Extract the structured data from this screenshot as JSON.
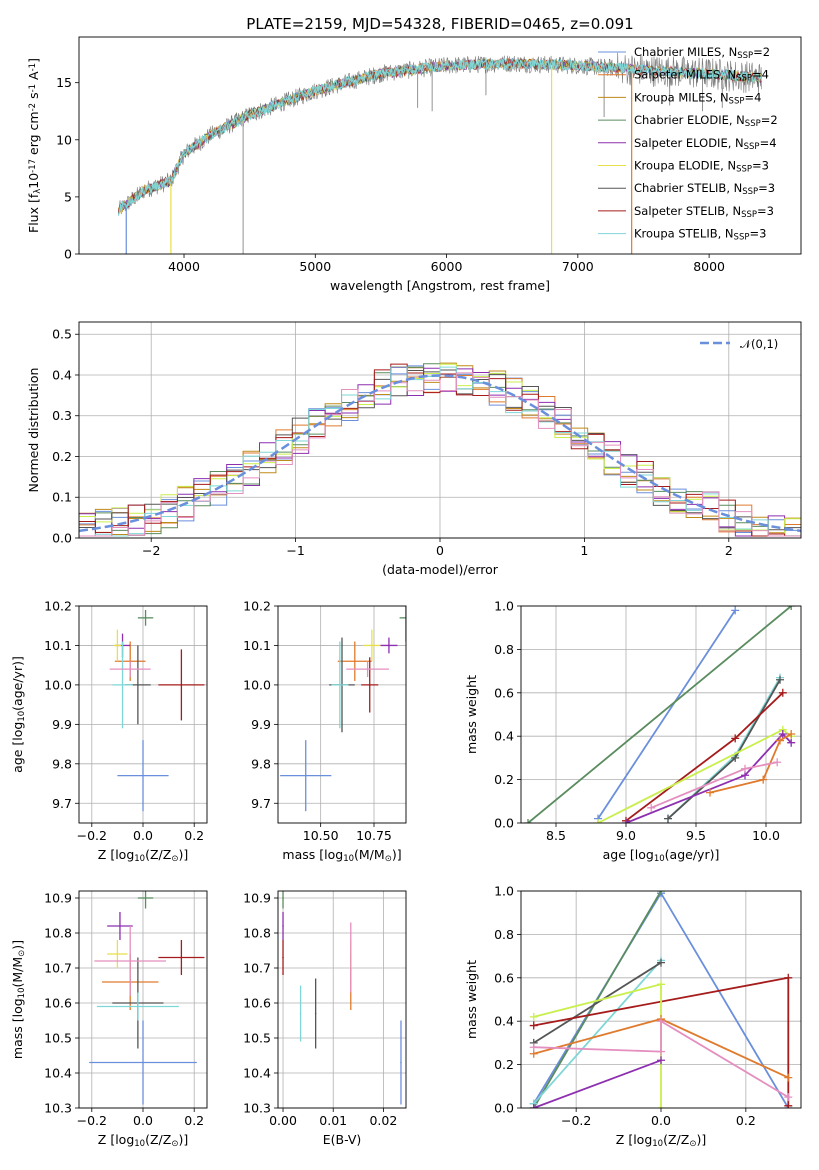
{
  "colors": {
    "Chabrier MILES": "#6a8fdc",
    "Salpeter MILES": "#e07a2c",
    "Kroupa MILES": "#c08a1a",
    "Chabrier ELODIE": "#5a8c5f",
    "Salpeter ELODIE": "#8e2fb0",
    "Kroupa ELODIE": "#e6e14a",
    "Chabrier STELIB": "#555555",
    "Salpeter STELIB": "#a61b1b",
    "Kroupa STELIB": "#7fd6d6",
    "pink": "#e48fbf",
    "lime": "#c9ef4c",
    "gauss": "#6a8fdc",
    "grid": "#b0b0b0"
  },
  "chart_data": [
    {
      "id": "spectrum",
      "type": "line",
      "title": "PLATE=2159, MJD=54328, FIBERID=0465, z=0.091",
      "xlabel": "wavelength [Angstrom, rest frame]",
      "ylabel": "Flux [f$_\\lambda$10$^{-17}$ erg cm$^{-2}$ s$^{-1}$ A$^{-1}$]",
      "xlim": [
        3200,
        8700
      ],
      "ylim": [
        0,
        19
      ],
      "xticks": [
        4000,
        5000,
        6000,
        7000,
        8000
      ],
      "yticks": [
        0,
        5,
        10,
        15
      ],
      "grid": false,
      "legend_position": "right",
      "series": [
        {
          "name": "Chabrier MILES, N$_{SSP}$=2"
        },
        {
          "name": "Salpeter MILES, N$_{SSP}$=4"
        },
        {
          "name": "Kroupa MILES, N$_{SSP}$=4"
        },
        {
          "name": "Chabrier ELODIE, N$_{SSP}$=2"
        },
        {
          "name": "Salpeter ELODIE, N$_{SSP}$=4"
        },
        {
          "name": "Kroupa ELODIE, N$_{SSP}$=3"
        },
        {
          "name": "Chabrier STELIB, N$_{SSP}$=3"
        },
        {
          "name": "Salpeter STELIB, N$_{SSP}$=3"
        },
        {
          "name": "Kroupa STELIB, N$_{SSP}$=3"
        }
      ],
      "continuum_points": [
        [
          3500,
          3.8
        ],
        [
          3700,
          5.6
        ],
        [
          3900,
          6.4
        ],
        [
          4000,
          8.8
        ],
        [
          4200,
          10.4
        ],
        [
          4500,
          12.2
        ],
        [
          5000,
          14.3
        ],
        [
          5500,
          15.8
        ],
        [
          6000,
          16.5
        ],
        [
          6500,
          16.7
        ],
        [
          7000,
          16.5
        ],
        [
          7500,
          16.1
        ],
        [
          8000,
          15.8
        ],
        [
          8400,
          15.4
        ]
      ],
      "spikes_down": [
        [
          4450,
          0.0
        ],
        [
          5780,
          12.8
        ],
        [
          5890,
          12.5
        ],
        [
          6300,
          13.9
        ],
        [
          7200,
          12.0
        ],
        [
          7700,
          13.0
        ],
        [
          7950,
          12.5
        ],
        [
          8100,
          12.8
        ]
      ],
      "model_drops": [
        [
          3560,
          "Chabrier MILES"
        ],
        [
          3900,
          "Kroupa ELODIE"
        ],
        [
          6800,
          "Kroupa ELODIE"
        ],
        [
          7410,
          "Salpeter MILES"
        ]
      ]
    },
    {
      "id": "residuals",
      "type": "histogram",
      "xlabel": "(data-model)/error",
      "ylabel": "Normed distribution",
      "xlim": [
        -2.5,
        2.5
      ],
      "ylim": [
        0,
        0.53
      ],
      "xticks": [
        -2,
        -1,
        0,
        1,
        2
      ],
      "yticks": [
        0.0,
        0.1,
        0.2,
        0.3,
        0.4,
        0.5
      ],
      "grid": true,
      "bins": 44,
      "legend": "$\\mathcal{N}(0,1)$",
      "legend_position": "upper right",
      "gaussian": {
        "mean": 0,
        "sigma": 1
      }
    },
    {
      "id": "age_vs_Z",
      "type": "errorbar",
      "xlabel": "Z [log$_{10}$(Z/Z$_\\odot$)]",
      "ylabel": "age  [log$_{10}$(age/yr)]",
      "xlim": [
        -0.25,
        0.25
      ],
      "ylim": [
        9.65,
        10.2
      ],
      "xticks": [
        -0.2,
        0.0,
        0.2
      ],
      "yticks": [
        9.7,
        9.8,
        9.9,
        10.0,
        10.1,
        10.2
      ],
      "points": [
        {
          "model": "Chabrier MILES",
          "x": 0.0,
          "y": 9.77,
          "xerr": 0.1,
          "yerr": 0.09
        },
        {
          "model": "Salpeter MILES",
          "x": -0.05,
          "y": 10.06,
          "xerr": 0.06,
          "yerr": 0.05
        },
        {
          "model": "Chabrier ELODIE",
          "x": 0.01,
          "y": 10.17,
          "xerr": 0.03,
          "yerr": 0.02
        },
        {
          "model": "Salpeter ELODIE",
          "x": -0.08,
          "y": 10.1,
          "xerr": 0.03,
          "yerr": 0.03
        },
        {
          "model": "Kroupa ELODIE",
          "x": -0.1,
          "y": 10.1,
          "xerr": 0.015,
          "yerr": 0.04
        },
        {
          "model": "Chabrier STELIB",
          "x": -0.02,
          "y": 10.0,
          "xerr": 0.05,
          "yerr": 0.1
        },
        {
          "model": "Salpeter STELIB",
          "x": 0.15,
          "y": 10.0,
          "xerr": 0.09,
          "yerr": 0.09
        },
        {
          "model": "Kroupa STELIB",
          "x": -0.08,
          "y": 10.0,
          "xerr": 0.04,
          "yerr": 0.11
        },
        {
          "model": "pink",
          "x": -0.05,
          "y": 10.04,
          "xerr": 0.08,
          "yerr": 0.02
        }
      ]
    },
    {
      "id": "age_vs_mass",
      "type": "errorbar",
      "xlabel": "mass [log$_{10}$(M/M$_\\odot$)]",
      "ylabel": "",
      "xlim": [
        10.3,
        10.9
      ],
      "ylim": [
        9.65,
        10.2
      ],
      "xticks": [
        10.5,
        10.75
      ],
      "yticks": [
        9.7,
        9.8,
        9.9,
        10.0,
        10.1,
        10.2
      ],
      "points": [
        {
          "model": "Chabrier MILES",
          "x": 10.43,
          "y": 9.77,
          "xerr": 0.12,
          "yerr": 0.09
        },
        {
          "model": "Salpeter MILES",
          "x": 10.66,
          "y": 10.06,
          "xerr": 0.08,
          "yerr": 0.05
        },
        {
          "model": "Chabrier ELODIE",
          "x": 10.9,
          "y": 10.17,
          "xerr": 0.03,
          "yerr": 0.06
        },
        {
          "model": "Salpeter ELODIE",
          "x": 10.82,
          "y": 10.1,
          "xerr": 0.04,
          "yerr": 0.02
        },
        {
          "model": "Kroupa ELODIE",
          "x": 10.74,
          "y": 10.1,
          "xerr": 0.04,
          "yerr": 0.04
        },
        {
          "model": "Chabrier STELIB",
          "x": 10.6,
          "y": 10.0,
          "xerr": 0.06,
          "yerr": 0.12
        },
        {
          "model": "Salpeter STELIB",
          "x": 10.73,
          "y": 10.0,
          "xerr": 0.04,
          "yerr": 0.07
        },
        {
          "model": "Kroupa STELIB",
          "x": 10.59,
          "y": 10.0,
          "xerr": 0.04,
          "yerr": 0.11
        },
        {
          "model": "pink",
          "x": 10.72,
          "y": 10.04,
          "xerr": 0.1,
          "yerr": 0.02
        }
      ]
    },
    {
      "id": "massweight_vs_age",
      "type": "line",
      "xlabel": "age  [log$_{10}$(age/yr)]",
      "ylabel": "mass weight",
      "xlim": [
        8.25,
        10.25
      ],
      "ylim": [
        0,
        1
      ],
      "xticks": [
        8.5,
        9.0,
        9.5,
        10.0
      ],
      "yticks": [
        0.0,
        0.2,
        0.4,
        0.6,
        0.8,
        1.0
      ],
      "grid": true,
      "series": [
        {
          "model": "Chabrier MILES",
          "x": [
            8.8,
            9.78
          ],
          "y": [
            0.02,
            0.98
          ]
        },
        {
          "model": "Chabrier ELODIE",
          "x": [
            8.3,
            10.18
          ],
          "y": [
            0.0,
            1.0
          ]
        },
        {
          "model": "Kroupa STELIB",
          "x": [
            9.3,
            9.78,
            10.1
          ],
          "y": [
            0.02,
            0.31,
            0.67
          ]
        },
        {
          "model": "Chabrier STELIB",
          "x": [
            9.3,
            9.78,
            10.1
          ],
          "y": [
            0.02,
            0.3,
            0.66
          ]
        },
        {
          "model": "Salpeter STELIB",
          "x": [
            9.0,
            9.78,
            10.12
          ],
          "y": [
            0.01,
            0.39,
            0.6
          ]
        },
        {
          "model": "lime",
          "x": [
            8.8,
            10.12,
            10.18
          ],
          "y": [
            0.0,
            0.43,
            0.4
          ]
        },
        {
          "model": "Salpeter ELODIE",
          "x": [
            9.0,
            9.85,
            10.12,
            10.18
          ],
          "y": [
            0.0,
            0.22,
            0.41,
            0.37
          ]
        },
        {
          "model": "Salpeter MILES",
          "x": [
            9.6,
            9.98,
            10.1,
            10.18
          ],
          "y": [
            0.14,
            0.2,
            0.38,
            0.41
          ]
        },
        {
          "model": "pink",
          "x": [
            9.18,
            9.85,
            10.08
          ],
          "y": [
            0.07,
            0.25,
            0.28
          ]
        }
      ]
    },
    {
      "id": "mass_vs_Z",
      "type": "errorbar",
      "xlabel": "Z [log$_{10}$(Z/Z$_\\odot$)]",
      "ylabel": "mass [log$_{10}$(M/M$_\\odot$)]",
      "xlim": [
        -0.25,
        0.25
      ],
      "ylim": [
        10.3,
        10.92
      ],
      "xticks": [
        -0.2,
        0.0,
        0.2
      ],
      "yticks": [
        10.3,
        10.4,
        10.5,
        10.6,
        10.7,
        10.8,
        10.9
      ],
      "points": [
        {
          "model": "Chabrier MILES",
          "x": 0.0,
          "y": 10.43,
          "xerr": 0.21,
          "yerr": 0.12
        },
        {
          "model": "Salpeter MILES",
          "x": -0.05,
          "y": 10.66,
          "xerr": 0.11,
          "yerr": 0.08
        },
        {
          "model": "Chabrier ELODIE",
          "x": 0.01,
          "y": 10.9,
          "xerr": 0.03,
          "yerr": 0.03
        },
        {
          "model": "Salpeter ELODIE",
          "x": -0.09,
          "y": 10.82,
          "xerr": 0.05,
          "yerr": 0.04
        },
        {
          "model": "Kroupa ELODIE",
          "x": -0.1,
          "y": 10.74,
          "xerr": 0.04,
          "yerr": 0.04
        },
        {
          "model": "Chabrier STELIB",
          "x": -0.02,
          "y": 10.6,
          "xerr": 0.1,
          "yerr": 0.13
        },
        {
          "model": "Salpeter STELIB",
          "x": 0.15,
          "y": 10.73,
          "xerr": 0.09,
          "yerr": 0.05
        },
        {
          "model": "Kroupa STELIB",
          "x": -0.02,
          "y": 10.59,
          "xerr": 0.16,
          "yerr": 0.04
        },
        {
          "model": "pink",
          "x": -0.05,
          "y": 10.72,
          "xerr": 0.14,
          "yerr": 0.1
        }
      ]
    },
    {
      "id": "mass_vs_EBV",
      "type": "errorbar",
      "xlabel": "E(B-V)",
      "ylabel": "",
      "xlim": [
        -0.001,
        0.0245
      ],
      "ylim": [
        10.3,
        10.92
      ],
      "xticks": [
        0.0,
        0.01,
        0.02
      ],
      "yticks": [
        10.3,
        10.4,
        10.5,
        10.6,
        10.7,
        10.8,
        10.9
      ],
      "points": [
        {
          "model": "Chabrier MILES",
          "x": 0.0235,
          "y": 10.43,
          "xerr": 0,
          "yerr": 0.12
        },
        {
          "model": "Salpeter MILES",
          "x": 0.0135,
          "y": 10.66,
          "xerr": 0,
          "yerr": 0.08
        },
        {
          "model": "Chabrier ELODIE",
          "x": 0.0,
          "y": 10.9,
          "xerr": 0,
          "yerr": 0.03
        },
        {
          "model": "Salpeter ELODIE",
          "x": 0.0,
          "y": 10.82,
          "xerr": 0,
          "yerr": 0.04
        },
        {
          "model": "Kroupa ELODIE",
          "x": 0.0135,
          "y": 10.74,
          "xerr": 0,
          "yerr": 0.04
        },
        {
          "model": "Chabrier STELIB",
          "x": 0.0065,
          "y": 10.57,
          "xerr": 0,
          "yerr": 0.1
        },
        {
          "model": "Salpeter STELIB",
          "x": 0.0,
          "y": 10.73,
          "xerr": 0,
          "yerr": 0.05
        },
        {
          "model": "Kroupa STELIB",
          "x": 0.0035,
          "y": 10.57,
          "xerr": 0,
          "yerr": 0.08
        },
        {
          "model": "pink",
          "x": 0.0135,
          "y": 10.73,
          "xerr": 0,
          "yerr": 0.1
        }
      ]
    },
    {
      "id": "massweight_vs_Z",
      "type": "line",
      "xlabel": "Z [log$_{10}$(Z/Z$_\\odot$)]",
      "ylabel": "mass weight",
      "xlim": [
        -0.33,
        0.33
      ],
      "ylim": [
        0,
        1
      ],
      "xticks": [
        -0.2,
        0.0,
        0.2
      ],
      "yticks": [
        0.0,
        0.2,
        0.4,
        0.6,
        0.8,
        1.0
      ],
      "grid": true,
      "series": [
        {
          "model": "Chabrier MILES",
          "x": [
            -0.3,
            0.0,
            0.3
          ],
          "y": [
            0.02,
            0.99,
            0.0
          ]
        },
        {
          "model": "Chabrier ELODIE",
          "x": [
            -0.3,
            0.0
          ],
          "y": [
            0.0,
            1.0
          ]
        },
        {
          "model": "Kroupa STELIB",
          "x": [
            -0.3,
            0.0
          ],
          "y": [
            0.02,
            0.68
          ]
        },
        {
          "model": "Chabrier STELIB",
          "x": [
            -0.3,
            0.0
          ],
          "y": [
            0.3,
            0.67
          ]
        },
        {
          "model": "Salpeter STELIB",
          "x": [
            -0.3,
            0.3,
            0.3
          ],
          "y": [
            0.38,
            0.6,
            0.01
          ]
        },
        {
          "model": "lime",
          "x": [
            -0.3,
            0.0,
            0.0
          ],
          "y": [
            0.42,
            0.57,
            0.0
          ]
        },
        {
          "model": "Salpeter MILES",
          "x": [
            -0.3,
            0.0,
            0.3
          ],
          "y": [
            0.25,
            0.41,
            0.14
          ]
        },
        {
          "model": "Salpeter ELODIE",
          "x": [
            -0.3,
            0.0
          ],
          "y": [
            0.0,
            0.22
          ]
        },
        {
          "model": "pink",
          "x": [
            -0.3,
            0.0,
            0.0,
            0.3
          ],
          "y": [
            0.28,
            0.26,
            0.4,
            0.05
          ]
        }
      ]
    }
  ]
}
